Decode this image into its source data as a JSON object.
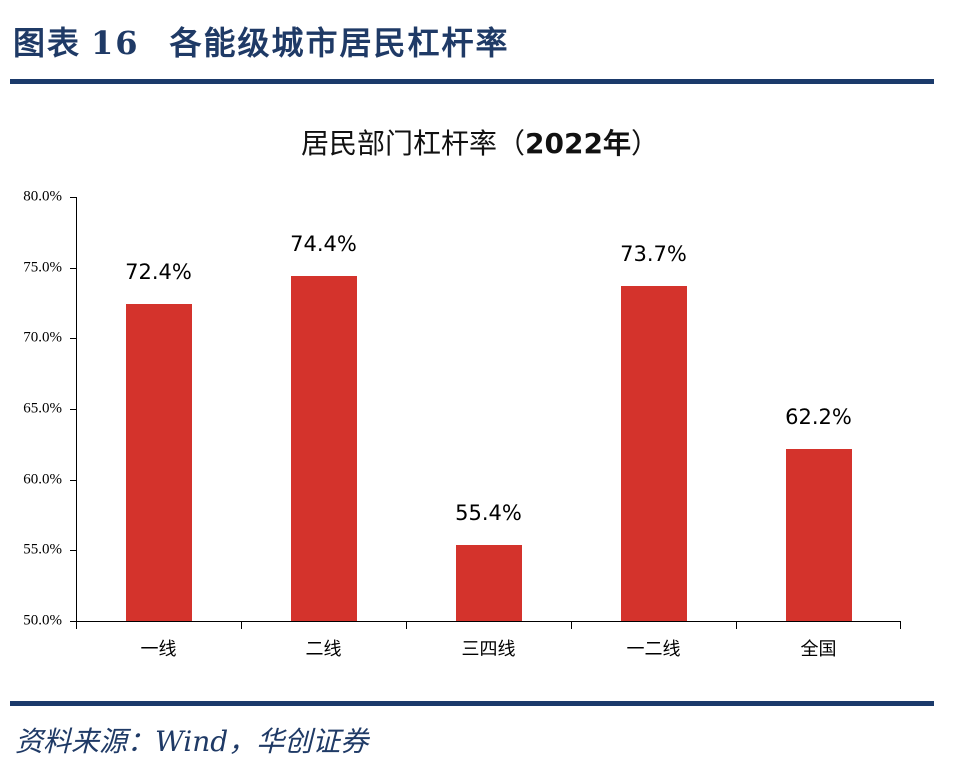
{
  "header": {
    "figure_label": "图表",
    "figure_number": "16",
    "figure_title": "各能级城市居民杠杆率"
  },
  "footer": {
    "source": "资料来源：Wind，华创证券"
  },
  "colors": {
    "bar": "#d4332c",
    "rule": "#1b3a6b",
    "title_text": "#1f3a66"
  },
  "chart_data": {
    "type": "bar",
    "title": "居民部门杠杆率（2022年）",
    "title_main": "居民部门杠杆率（",
    "title_year": "2022年",
    "title_close": "）",
    "categories": [
      "一线",
      "二线",
      "三四线",
      "一二线",
      "全国"
    ],
    "values": [
      72.4,
      74.4,
      55.4,
      73.7,
      62.2
    ],
    "value_labels": [
      "72.4%",
      "74.4%",
      "55.4%",
      "73.7%",
      "62.2%"
    ],
    "xlabel": "",
    "ylabel": "",
    "ylim": [
      50,
      80
    ],
    "yticks": [
      "80.0%",
      "75.0%",
      "70.0%",
      "65.0%",
      "60.0%",
      "55.0%",
      "50.0%"
    ],
    "grid": false,
    "legend": "none"
  }
}
